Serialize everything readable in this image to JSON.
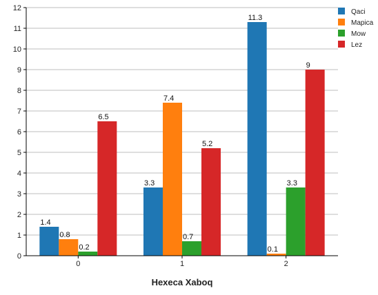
{
  "chart_data": {
    "type": "bar",
    "title": "",
    "xlabel": "Hexeca Xaboq",
    "ylabel": "",
    "categories": [
      "0",
      "1",
      "2"
    ],
    "ylim": [
      0,
      12
    ],
    "yticks": [
      0,
      1,
      2,
      3,
      4,
      5,
      6,
      7,
      8,
      9,
      10,
      11,
      12
    ],
    "grid": true,
    "legend_position": "top-right",
    "series": [
      {
        "name": "Qaci",
        "color": "#1f77b4",
        "values": [
          1.4,
          3.3,
          11.3
        ]
      },
      {
        "name": "Mapica",
        "color": "#ff7f0e",
        "values": [
          0.8,
          7.4,
          0.1
        ]
      },
      {
        "name": "Mow",
        "color": "#2ca02c",
        "values": [
          0.2,
          0.7,
          3.3
        ]
      },
      {
        "name": "Lez",
        "color": "#d62728",
        "values": [
          6.5,
          5.2,
          9
        ]
      }
    ]
  }
}
